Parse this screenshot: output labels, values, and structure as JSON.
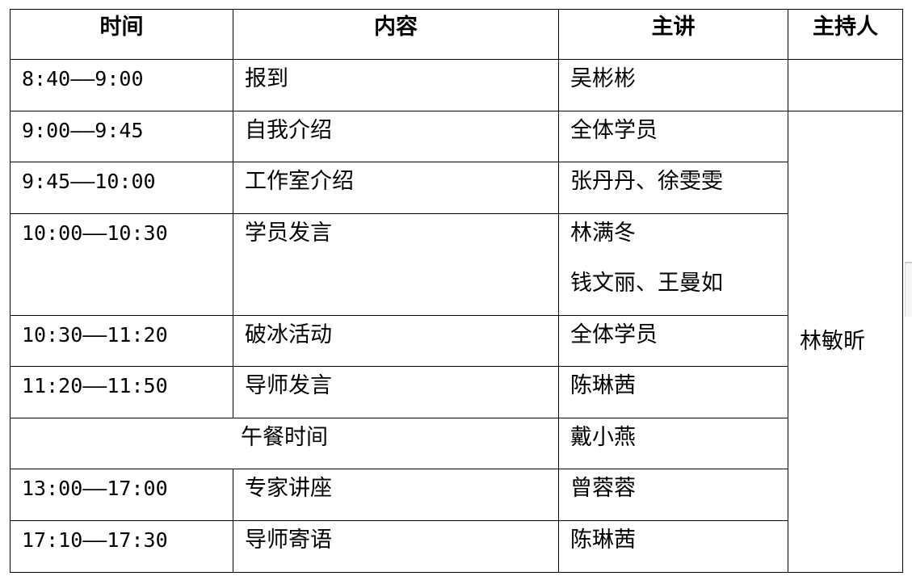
{
  "headers": {
    "time": "时间",
    "content": "内容",
    "speaker": "主讲",
    "host": "主持人"
  },
  "host_name": "林敏昕",
  "rows": [
    {
      "time": "8:40——9:00",
      "content": "报到",
      "speaker": "吴彬彬"
    },
    {
      "time": "9:00——9:45",
      "content": "自我介绍",
      "speaker": "全体学员"
    },
    {
      "time": "9:45——10:00",
      "content": "工作室介绍",
      "speaker": "张丹丹、徐雯雯"
    },
    {
      "time": "10:00——10:30",
      "content": "学员发言",
      "speaker": "林满冬",
      "speaker2": "钱文丽、王曼如"
    },
    {
      "time": "10:30——11:20",
      "content": "破冰活动",
      "speaker": "全体学员"
    },
    {
      "time": "11:20——11:50",
      "content": "导师发言",
      "speaker": "陈琳茜"
    },
    {
      "lunch": "午餐时间",
      "speaker": "戴小燕"
    },
    {
      "time": "13:00——17:00",
      "content": "专家讲座",
      "speaker": "曾蓉蓉"
    },
    {
      "time": "17:10——17:30",
      "content": "导师寄语",
      "speaker": "陈琳茜"
    }
  ]
}
